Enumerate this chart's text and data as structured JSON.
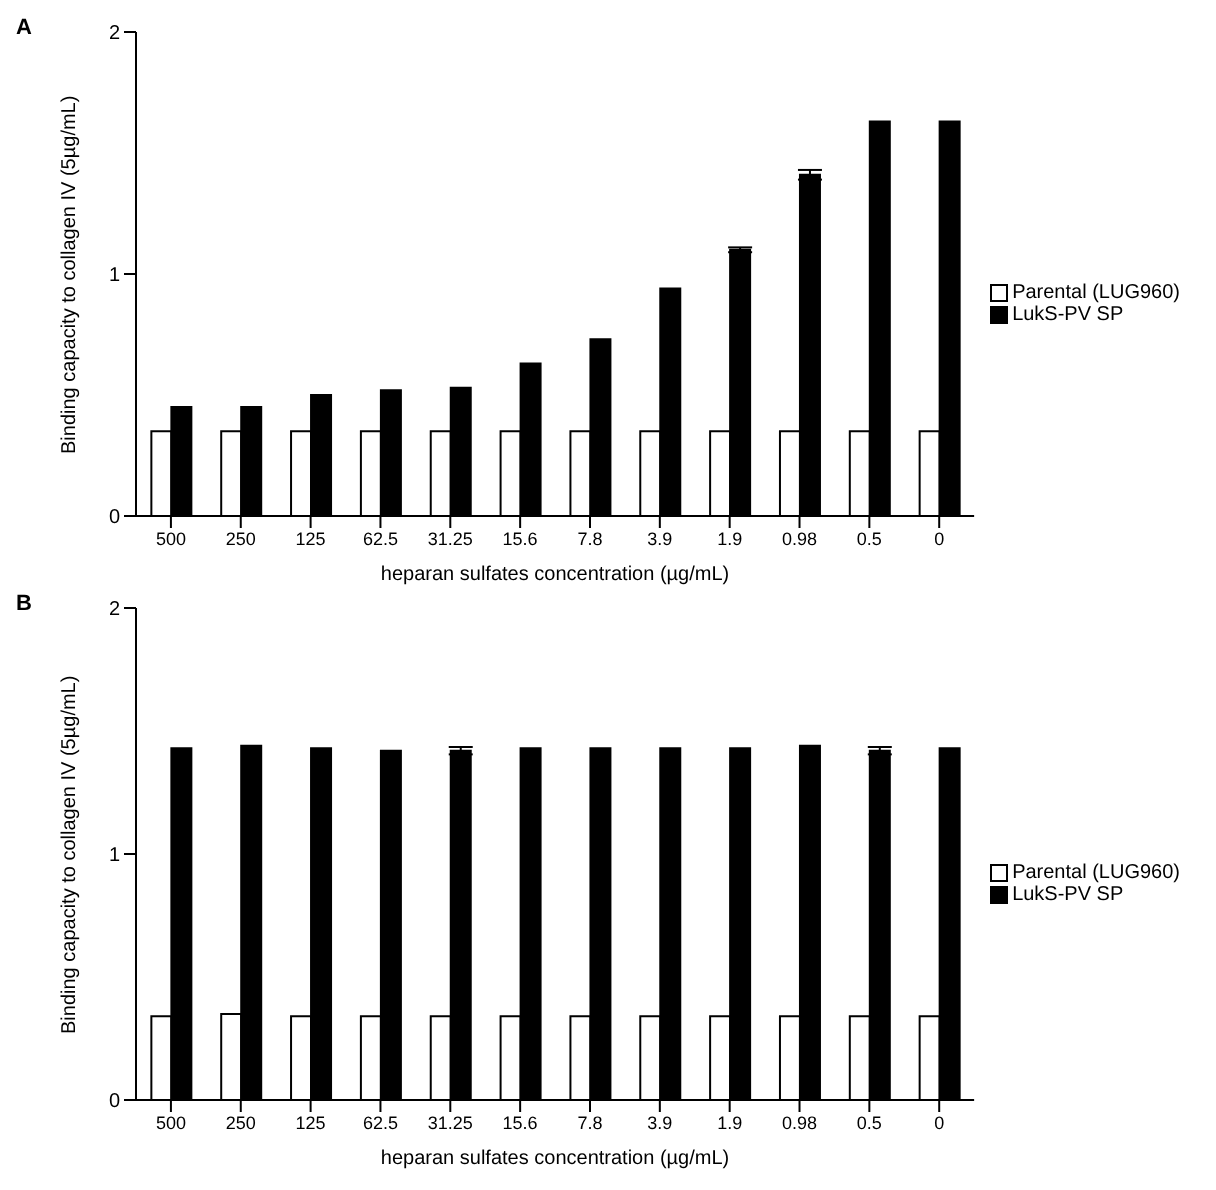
{
  "chart_data": [
    {
      "type": "bar",
      "title": "A",
      "xlabel": "heparan sulfates concentration (µg/mL)",
      "ylabel": "Binding capacity to collagen IV (5µg/mL)",
      "categories": [
        "500",
        "250",
        "125",
        "62.5",
        "31.25",
        "15.6",
        "7.8",
        "3.9",
        "1.9",
        "0.98",
        "0.5",
        "0"
      ],
      "series": [
        {
          "name": "Parental (LUG960)",
          "color": "#ffffff",
          "values": [
            0.35,
            0.35,
            0.35,
            0.35,
            0.35,
            0.35,
            0.35,
            0.35,
            0.35,
            0.35,
            0.35,
            0.35
          ]
        },
        {
          "name": "LukS-PV SP",
          "color": "#000000",
          "values": [
            0.45,
            0.45,
            0.5,
            0.52,
            0.53,
            0.63,
            0.73,
            0.94,
            1.1,
            1.41,
            1.63,
            1.63
          ],
          "errors": [
            null,
            null,
            null,
            null,
            null,
            null,
            null,
            null,
            0.01,
            0.02,
            null,
            null
          ]
        }
      ],
      "ylim": [
        0,
        2
      ],
      "yticks": [
        0,
        1,
        2
      ],
      "grid": false,
      "legend": "right"
    },
    {
      "type": "bar",
      "title": "B",
      "xlabel": "heparan sulfates concentration (µg/mL)",
      "ylabel": "Binding capacity to collagen IV (5µg/mL)",
      "categories": [
        "500",
        "250",
        "125",
        "62.5",
        "31.25",
        "15.6",
        "7.8",
        "3.9",
        "1.9",
        "0.98",
        "0.5",
        "0"
      ],
      "series": [
        {
          "name": "Parental (LUG960)",
          "color": "#ffffff",
          "values": [
            0.34,
            0.35,
            0.34,
            0.34,
            0.34,
            0.34,
            0.34,
            0.34,
            0.34,
            0.34,
            0.34,
            0.34
          ]
        },
        {
          "name": "LukS-PV SP",
          "color": "#000000",
          "values": [
            1.43,
            1.44,
            1.43,
            1.42,
            1.42,
            1.43,
            1.43,
            1.43,
            1.43,
            1.44,
            1.42,
            1.43
          ],
          "errors": [
            null,
            null,
            null,
            null,
            0.015,
            null,
            null,
            null,
            null,
            null,
            0.015,
            null
          ]
        }
      ],
      "ylim": [
        0,
        2
      ],
      "yticks": [
        0,
        1,
        2
      ],
      "grid": false,
      "legend": "right"
    }
  ]
}
